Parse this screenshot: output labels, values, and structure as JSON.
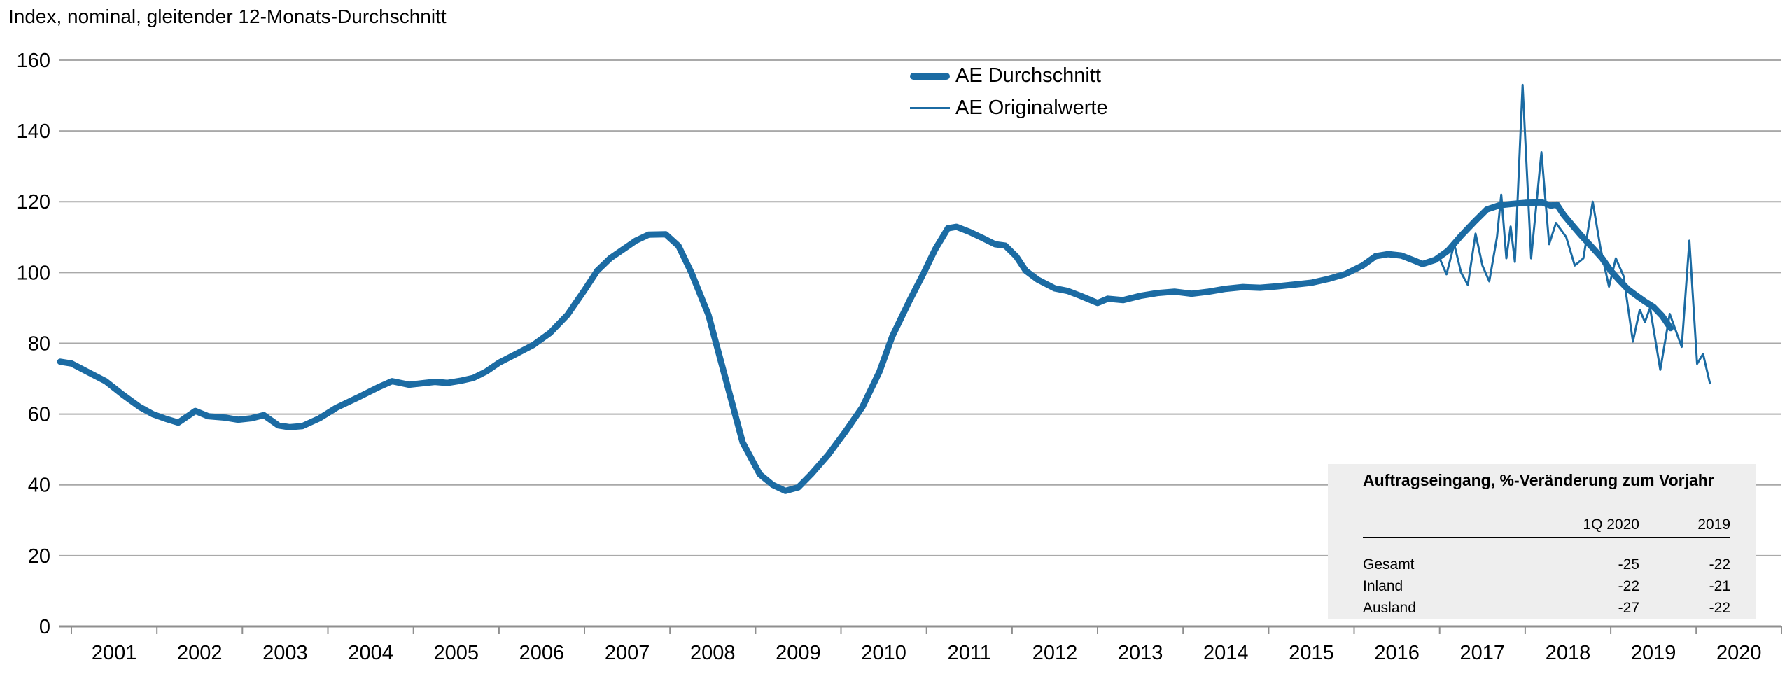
{
  "title": "Index, nominal, gleitender 12-Monats-Durchschnitt",
  "colors": {
    "line_blue": "#1b6ba3",
    "grid_gray": "#a9a9a9",
    "axis_gray": "#8f8f8f",
    "table_bg": "#eeeeee"
  },
  "legend": {
    "items": [
      {
        "label": "AE Durchschnitt",
        "style": "thick"
      },
      {
        "label": "AE Originalwerte",
        "style": "thin"
      }
    ]
  },
  "chart_data": {
    "type": "line",
    "title": "Index, nominal, gleitender 12-Monats-Durchschnitt",
    "xlabel": "",
    "ylabel": "Index",
    "grid": true,
    "legend_position": "top-center",
    "x_axis": {
      "tick_years": [
        "2001",
        "2002",
        "2003",
        "2004",
        "2005",
        "2006",
        "2007",
        "2008",
        "2009",
        "2010",
        "2011",
        "2012",
        "2013",
        "2014",
        "2015",
        "2016",
        "2017",
        "2018",
        "2019",
        "2020"
      ],
      "range": [
        2001,
        2021
      ]
    },
    "y_axis": {
      "ticks": [
        0,
        20,
        40,
        60,
        80,
        100,
        120,
        140,
        160
      ],
      "range": [
        0,
        160
      ]
    },
    "series": [
      {
        "name": "AE Durchschnitt",
        "style": "thick",
        "points": [
          [
            2000.87,
            74.8
          ],
          [
            2001,
            74.3
          ],
          [
            2001.2,
            71.8
          ],
          [
            2001.4,
            69.3
          ],
          [
            2001.6,
            65.5
          ],
          [
            2001.8,
            62
          ],
          [
            2001.95,
            60
          ],
          [
            2002.1,
            58.7
          ],
          [
            2002.25,
            57.6
          ],
          [
            2002.45,
            60.9
          ],
          [
            2002.6,
            59.4
          ],
          [
            2002.8,
            59
          ],
          [
            2002.95,
            58.4
          ],
          [
            2003.1,
            58.8
          ],
          [
            2003.25,
            59.7
          ],
          [
            2003.42,
            56.8
          ],
          [
            2003.55,
            56.3
          ],
          [
            2003.7,
            56.6
          ],
          [
            2003.9,
            58.8
          ],
          [
            2004.1,
            61.8
          ],
          [
            2004.35,
            64.7
          ],
          [
            2004.6,
            67.7
          ],
          [
            2004.75,
            69.3
          ],
          [
            2004.95,
            68.3
          ],
          [
            2005.1,
            68.7
          ],
          [
            2005.25,
            69.1
          ],
          [
            2005.4,
            68.8
          ],
          [
            2005.55,
            69.4
          ],
          [
            2005.7,
            70.2
          ],
          [
            2005.85,
            72
          ],
          [
            2006,
            74.5
          ],
          [
            2006.2,
            77
          ],
          [
            2006.4,
            79.5
          ],
          [
            2006.6,
            83
          ],
          [
            2006.8,
            88
          ],
          [
            2007,
            95
          ],
          [
            2007.15,
            100.5
          ],
          [
            2007.3,
            104
          ],
          [
            2007.45,
            106.5
          ],
          [
            2007.6,
            109
          ],
          [
            2007.75,
            110.7
          ],
          [
            2007.95,
            110.8
          ],
          [
            2008.1,
            107.5
          ],
          [
            2008.25,
            100
          ],
          [
            2008.45,
            88
          ],
          [
            2008.65,
            70
          ],
          [
            2008.85,
            52
          ],
          [
            2009.05,
            43
          ],
          [
            2009.2,
            40
          ],
          [
            2009.35,
            38.3
          ],
          [
            2009.5,
            39.3
          ],
          [
            2009.65,
            43
          ],
          [
            2009.85,
            48.5
          ],
          [
            2010.05,
            55
          ],
          [
            2010.25,
            62
          ],
          [
            2010.45,
            72
          ],
          [
            2010.6,
            82
          ],
          [
            2010.8,
            92
          ],
          [
            2010.97,
            100
          ],
          [
            2011.1,
            106.5
          ],
          [
            2011.25,
            112.5
          ],
          [
            2011.35,
            112.9
          ],
          [
            2011.5,
            111.5
          ],
          [
            2011.65,
            109.8
          ],
          [
            2011.8,
            108
          ],
          [
            2011.92,
            107.6
          ],
          [
            2012.05,
            104.5
          ],
          [
            2012.16,
            100.5
          ],
          [
            2012.3,
            98
          ],
          [
            2012.5,
            95.5
          ],
          [
            2012.65,
            94.8
          ],
          [
            2012.8,
            93.4
          ],
          [
            2013,
            91.4
          ],
          [
            2013.12,
            92.6
          ],
          [
            2013.3,
            92.2
          ],
          [
            2013.5,
            93.4
          ],
          [
            2013.7,
            94.2
          ],
          [
            2013.9,
            94.6
          ],
          [
            2014.1,
            94
          ],
          [
            2014.3,
            94.6
          ],
          [
            2014.5,
            95.4
          ],
          [
            2014.7,
            95.9
          ],
          [
            2014.9,
            95.7
          ],
          [
            2015.1,
            96.1
          ],
          [
            2015.3,
            96.6
          ],
          [
            2015.5,
            97.1
          ],
          [
            2015.7,
            98.2
          ],
          [
            2015.9,
            99.6
          ],
          [
            2016.1,
            102
          ],
          [
            2016.25,
            104.6
          ],
          [
            2016.4,
            105.2
          ],
          [
            2016.55,
            104.8
          ],
          [
            2016.7,
            103.4
          ],
          [
            2016.8,
            102.4
          ],
          [
            2016.95,
            103.6
          ],
          [
            2017.1,
            106.2
          ],
          [
            2017.25,
            110.4
          ],
          [
            2017.4,
            114.2
          ],
          [
            2017.55,
            117.8
          ],
          [
            2017.7,
            119
          ],
          [
            2017.85,
            119.4
          ],
          [
            2018,
            119.7
          ],
          [
            2018.2,
            119.8
          ],
          [
            2018.3,
            118.9
          ],
          [
            2018.37,
            119.2
          ],
          [
            2018.45,
            116.3
          ],
          [
            2018.55,
            113.4
          ],
          [
            2018.65,
            110.6
          ],
          [
            2018.78,
            107.2
          ],
          [
            2018.9,
            104
          ],
          [
            2019,
            100.5
          ],
          [
            2019.1,
            97.8
          ],
          [
            2019.2,
            95.3
          ],
          [
            2019.3,
            93.5
          ],
          [
            2019.4,
            91.8
          ],
          [
            2019.5,
            90.3
          ],
          [
            2019.6,
            87.8
          ],
          [
            2019.7,
            84.3
          ]
        ]
      },
      {
        "name": "AE Originalwerte",
        "style": "thin",
        "points": [
          [
            2017,
            104
          ],
          [
            2017.08,
            99.5
          ],
          [
            2017.17,
            108
          ],
          [
            2017.25,
            100
          ],
          [
            2017.33,
            96.5
          ],
          [
            2017.42,
            111
          ],
          [
            2017.5,
            102
          ],
          [
            2017.58,
            97.5
          ],
          [
            2017.67,
            110
          ],
          [
            2017.72,
            122
          ],
          [
            2017.78,
            104
          ],
          [
            2017.83,
            113
          ],
          [
            2017.88,
            103
          ],
          [
            2017.97,
            153
          ],
          [
            2018.07,
            104
          ],
          [
            2018.19,
            134
          ],
          [
            2018.28,
            108
          ],
          [
            2018.36,
            114
          ],
          [
            2018.48,
            110
          ],
          [
            2018.58,
            102
          ],
          [
            2018.68,
            104
          ],
          [
            2018.79,
            120
          ],
          [
            2018.88,
            107
          ],
          [
            2018.98,
            96
          ],
          [
            2019.06,
            104
          ],
          [
            2019.15,
            99
          ],
          [
            2019.26,
            80.5
          ],
          [
            2019.34,
            89.5
          ],
          [
            2019.4,
            86
          ],
          [
            2019.46,
            90
          ],
          [
            2019.58,
            72.5
          ],
          [
            2019.69,
            88.3
          ],
          [
            2019.83,
            79
          ],
          [
            2019.92,
            109
          ],
          [
            2020.01,
            74.2
          ],
          [
            2020.08,
            77
          ],
          [
            2020.16,
            68.7
          ]
        ]
      }
    ]
  },
  "table": {
    "title": "Auftragseingang, %-Veränderung zum Vorjahr",
    "columns": [
      "1Q 2020",
      "2019"
    ],
    "rows": [
      {
        "label": "Gesamt",
        "values": [
          "-25",
          "-22"
        ]
      },
      {
        "label": "Inland",
        "values": [
          "-22",
          "-21"
        ]
      },
      {
        "label": "Ausland",
        "values": [
          "-27",
          "-22"
        ]
      }
    ]
  }
}
